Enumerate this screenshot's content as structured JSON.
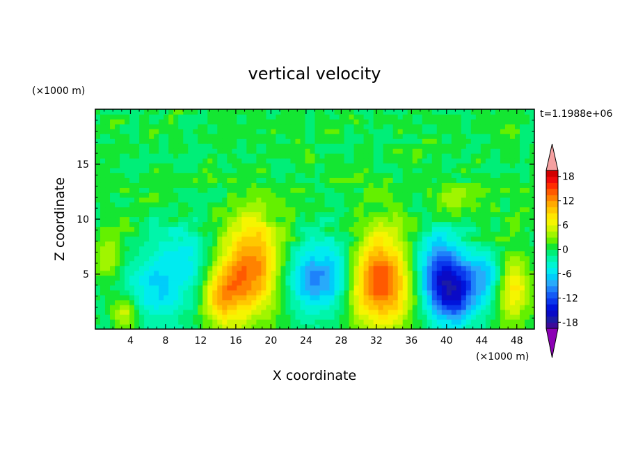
{
  "chart_data": {
    "type": "heatmap",
    "title": "vertical velocity",
    "xlabel": "X coordinate",
    "ylabel": "Z coordinate",
    "x_unit": "(×1000 m)",
    "y_unit": "(×1000 m)",
    "time_label": "t=1.1988e+06",
    "xlim": [
      0,
      50
    ],
    "ylim": [
      0,
      20
    ],
    "x_ticks": [
      "4",
      "8",
      "12",
      "16",
      "20",
      "24",
      "28",
      "32",
      "36",
      "40",
      "44",
      "48"
    ],
    "y_ticks": [
      "5",
      "10",
      "15"
    ],
    "colorbar": {
      "ticks": [
        "18",
        "12",
        "6",
        "0",
        "-6",
        "-12",
        "-18"
      ],
      "levels": [
        -21,
        -19.5,
        -18,
        -16.5,
        -15,
        -13.5,
        -12,
        -10.5,
        -9,
        -7.5,
        -6,
        -4.5,
        -3,
        -1.5,
        0,
        1.5,
        3,
        4.5,
        6,
        7.5,
        9,
        10.5,
        12,
        13.5,
        15,
        16.5,
        18,
        19.5,
        21
      ],
      "colors": [
        "#8b00b4",
        "#3c0a9a",
        "#1b1ba6",
        "#0a0ac6",
        "#0014dc",
        "#0a37ec",
        "#145af5",
        "#1e82fa",
        "#28aafa",
        "#00cdfa",
        "#00ebf0",
        "#00f5d2",
        "#00f5aa",
        "#00ee78",
        "#14e632",
        "#64f000",
        "#a0f500",
        "#d2f500",
        "#f5f500",
        "#ffe600",
        "#ffc800",
        "#ffaa00",
        "#ff8200",
        "#ff5a00",
        "#ff2d00",
        "#f00a0a",
        "#d20000",
        "#f5a0a0"
      ]
    },
    "features": [
      {
        "x": 17.8,
        "z": 5.8,
        "amp": 13,
        "sx": 2.3,
        "sz": 3.2
      },
      {
        "x": 14.5,
        "z": 3.0,
        "amp": 9,
        "sx": 1.6,
        "sz": 2.0
      },
      {
        "x": 32.5,
        "z": 4.4,
        "amp": 15,
        "sx": 2.5,
        "sz": 3.0
      },
      {
        "x": 3.5,
        "z": 1.6,
        "amp": 6,
        "sx": 1.0,
        "sz": 1.1
      },
      {
        "x": 47.5,
        "z": 3.8,
        "amp": 8,
        "sx": 1.3,
        "sz": 2.2
      },
      {
        "x": 1.5,
        "z": 6.8,
        "amp": 4,
        "sx": 1.2,
        "sz": 1.8
      },
      {
        "x": 41.0,
        "z": 12.0,
        "amp": 3,
        "sx": 1.8,
        "sz": 1.2
      },
      {
        "x": 40.8,
        "z": 3.2,
        "amp": -13,
        "sx": 2.0,
        "sz": 2.0
      },
      {
        "x": 39.0,
        "z": 5.8,
        "amp": -9,
        "sx": 2.0,
        "sz": 2.3
      },
      {
        "x": 25.0,
        "z": 4.6,
        "amp": -9,
        "sx": 2.3,
        "sz": 2.2
      },
      {
        "x": 44.5,
        "z": 5.0,
        "amp": -6,
        "sx": 1.6,
        "sz": 1.6
      },
      {
        "x": 7.0,
        "z": 3.8,
        "amp": -6,
        "sx": 2.5,
        "sz": 2.6
      },
      {
        "x": 10.5,
        "z": 6.5,
        "amp": -4,
        "sx": 2.0,
        "sz": 2.0
      },
      {
        "x": 28.0,
        "z": 6.0,
        "amp": -3,
        "sx": 1.5,
        "sz": 2.5
      }
    ]
  }
}
